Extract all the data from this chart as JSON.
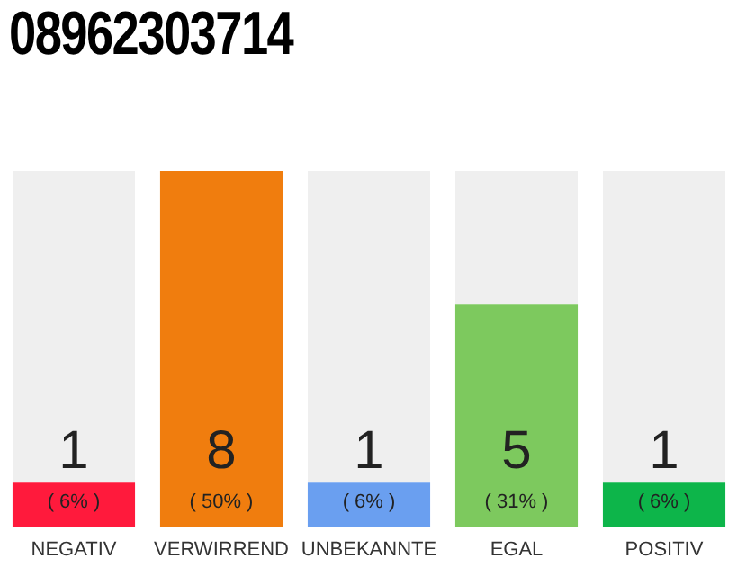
{
  "chart_data": {
    "type": "bar",
    "title": "08962303714",
    "categories": [
      "NEGATIV",
      "VERWIRREND",
      "UNBEKANNTE",
      "EGAL",
      "POSITIV"
    ],
    "values": [
      1,
      8,
      1,
      5,
      1
    ],
    "colors": [
      "#ff1a3c",
      "#f07d0e",
      "#6a9ff0",
      "#7dc95e",
      "#0db54a"
    ],
    "data_labels": true,
    "annotations": [
      "( 6% )",
      "( 50% )",
      "( 6% )",
      "( 31% )",
      "( 6% )"
    ],
    "grid": false,
    "legend": false
  }
}
